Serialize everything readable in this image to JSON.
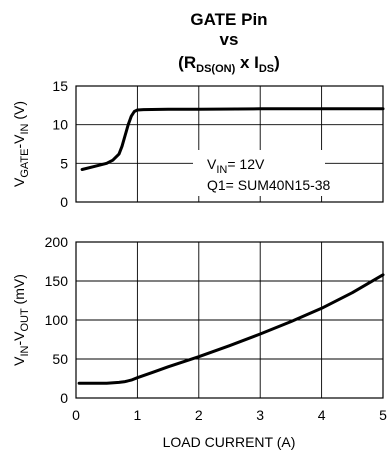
{
  "chart_data": [
    {
      "type": "line",
      "title": {
        "line1": "GATE Pin",
        "line2": "vs",
        "line3_parts": [
          "(R",
          "DS(ON)",
          " x I",
          "DS",
          ")"
        ]
      },
      "ylabel_parts": [
        "V",
        "GATE",
        "-V",
        "IN",
        " (V)"
      ],
      "xlim": [
        0,
        5
      ],
      "ylim": [
        0,
        15
      ],
      "yticks": [
        0,
        5,
        10,
        15
      ],
      "grid": true,
      "annotation": {
        "vin_parts": [
          "V",
          "IN",
          "= 12V"
        ],
        "q1": "Q1= SUM40N15-38"
      },
      "series": [
        {
          "x": [
            0.1,
            0.3,
            0.5,
            0.6,
            0.7,
            0.75,
            0.8,
            0.85,
            0.9,
            0.95,
            1.0,
            1.1,
            1.5,
            2.0,
            3.0,
            4.0,
            5.0
          ],
          "y": [
            4.2,
            4.6,
            5.0,
            5.4,
            6.2,
            7.2,
            8.6,
            10.0,
            11.1,
            11.7,
            11.9,
            11.95,
            12.0,
            12.0,
            12.05,
            12.05,
            12.05
          ]
        }
      ]
    },
    {
      "type": "line",
      "xlabel": "LOAD CURRENT (A)",
      "ylabel_parts": [
        "V",
        "IN",
        "-V",
        "OUT",
        " (mV)"
      ],
      "xlim": [
        0,
        5
      ],
      "ylim": [
        0,
        200
      ],
      "xticks": [
        0,
        1,
        2,
        3,
        4,
        5
      ],
      "yticks": [
        0,
        50,
        100,
        150,
        200
      ],
      "grid": true,
      "series": [
        {
          "x": [
            0.05,
            0.3,
            0.5,
            0.7,
            0.8,
            0.9,
            1.0,
            1.25,
            1.5,
            2.0,
            2.5,
            3.0,
            3.5,
            4.0,
            4.5,
            5.0
          ],
          "y": [
            19,
            19,
            19,
            20,
            21,
            23,
            26,
            33,
            40,
            53,
            67,
            82,
            98,
            115,
            135,
            158
          ]
        }
      ]
    }
  ]
}
